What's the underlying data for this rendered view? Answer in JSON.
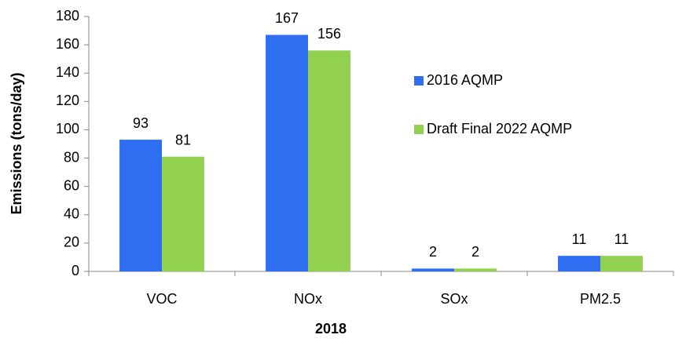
{
  "chart_data": {
    "type": "bar",
    "x_label": "2018",
    "y_label": "Emissions (tons/day)",
    "categories": [
      "VOC",
      "NOx",
      "SOx",
      "PM2.5"
    ],
    "series": [
      {
        "name": "2016 AQMP",
        "color": "#2e6ff2",
        "values": [
          93,
          167,
          2,
          11
        ]
      },
      {
        "name": "Draft Final 2022 AQMP",
        "color": "#92d050",
        "values": [
          81,
          156,
          2,
          11
        ]
      }
    ],
    "ylim": [
      0,
      180
    ],
    "yticks": [
      0,
      20,
      40,
      60,
      80,
      100,
      120,
      140,
      160,
      180
    ],
    "grid": false,
    "legend": "right"
  }
}
